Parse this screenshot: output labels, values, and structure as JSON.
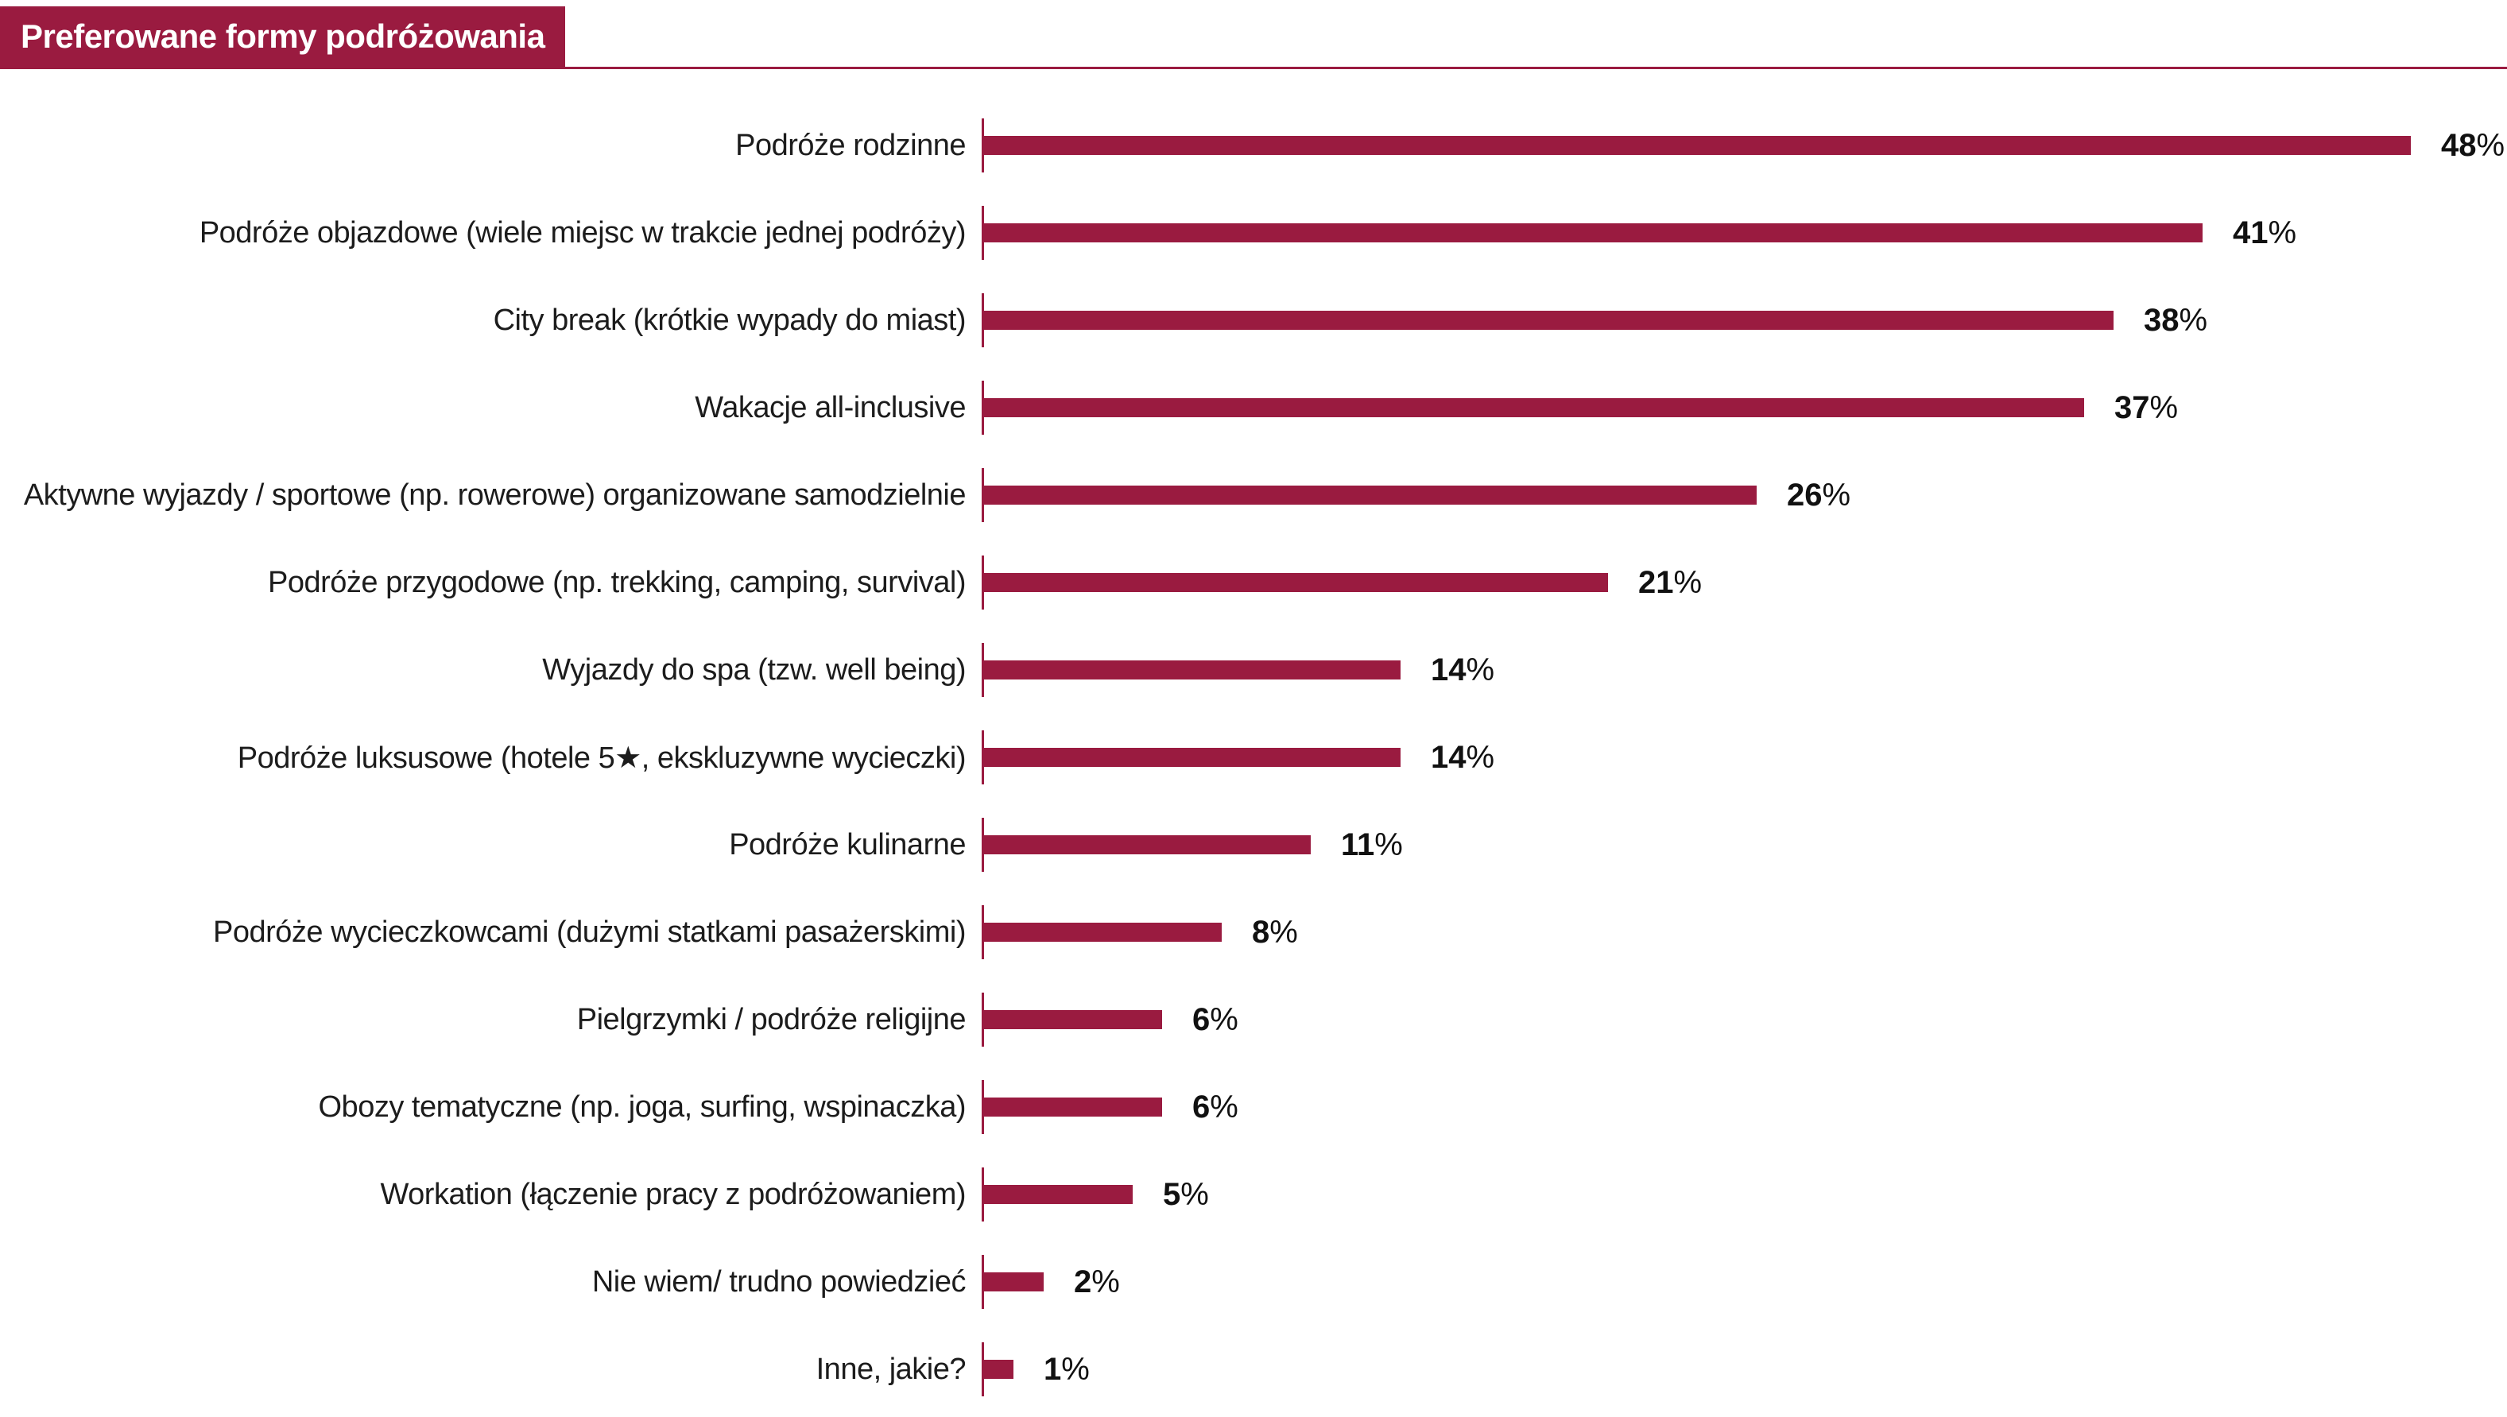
{
  "title": "Preferowane formy podróżowania",
  "colors": {
    "accent": "#9A1B40",
    "background": "#FFFFFF",
    "label_text": "#1C1C1C",
    "value_text": "#111111"
  },
  "chart_data": {
    "type": "bar",
    "orientation": "horizontal",
    "title": "Preferowane formy podróżowania",
    "categories": [
      "Podróże rodzinne",
      "Podróże objazdowe (wiele miejsc w trakcie jednej podróży)",
      "City break (krótkie wypady do miast)",
      "Wakacje all-inclusive",
      "Aktywne wyjazdy / sportowe (np. rowerowe) organizowane samodzielnie",
      "Podróże przygodowe (np. trekking, camping, survival)",
      "Wyjazdy do spa (tzw. well being)",
      "Podróże luksusowe (hotele 5★, ekskluzywne wycieczki)",
      "Podróże kulinarne",
      "Podróże wycieczkowcami (dużymi statkami pasażerskimi)",
      "Pielgrzymki / podróże religijne",
      "Obozy tematyczne (np. joga, surfing, wspinaczka)",
      "Workation (łączenie pracy z podróżowaniem)",
      "Nie wiem/ trudno powiedzieć",
      "Inne, jakie?"
    ],
    "values": [
      48,
      41,
      38,
      37,
      26,
      21,
      14,
      14,
      11,
      8,
      6,
      6,
      5,
      2,
      1
    ],
    "value_suffix": "%",
    "xlabel": "",
    "ylabel": "",
    "xlim": [
      0,
      50
    ],
    "grid": false,
    "legend": false,
    "bar_color": "#9A1B40"
  }
}
